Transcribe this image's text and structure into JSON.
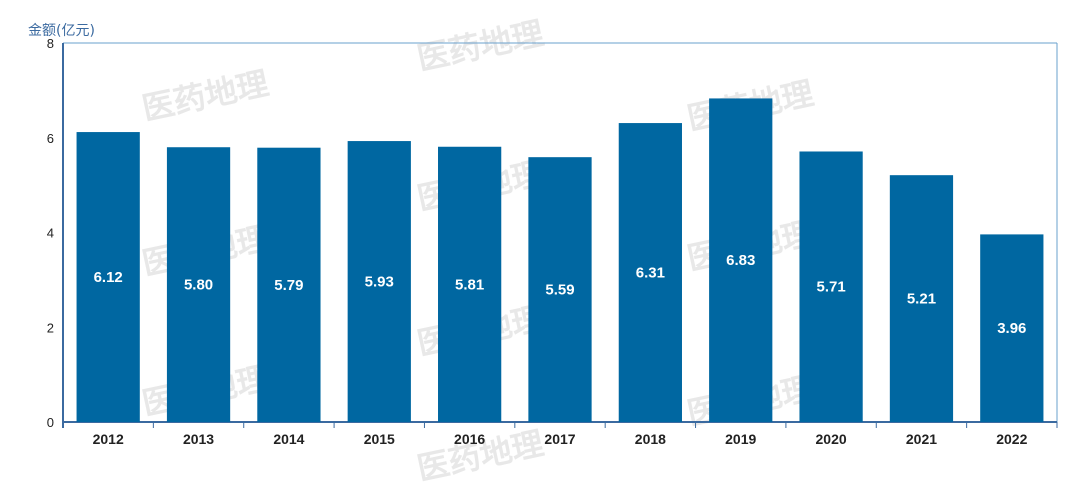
{
  "chart_data": {
    "type": "bar",
    "ylabel": "金额(亿元)",
    "categories": [
      "2012",
      "2013",
      "2014",
      "2015",
      "2016",
      "2017",
      "2018",
      "2019",
      "2020",
      "2021",
      "2022"
    ],
    "values": [
      6.12,
      5.8,
      5.79,
      5.93,
      5.81,
      5.59,
      6.31,
      6.83,
      5.71,
      5.21,
      3.96
    ],
    "data_labels": [
      "6.12",
      "5.80",
      "5.79",
      "5.93",
      "5.81",
      "5.59",
      "6.31",
      "6.83",
      "5.71",
      "5.21",
      "3.96"
    ],
    "ylim": [
      0,
      8
    ],
    "yticks": [
      0,
      2,
      4,
      6,
      8
    ],
    "bar_color": "#0067a1",
    "grid": false
  },
  "watermark": "医药地理"
}
